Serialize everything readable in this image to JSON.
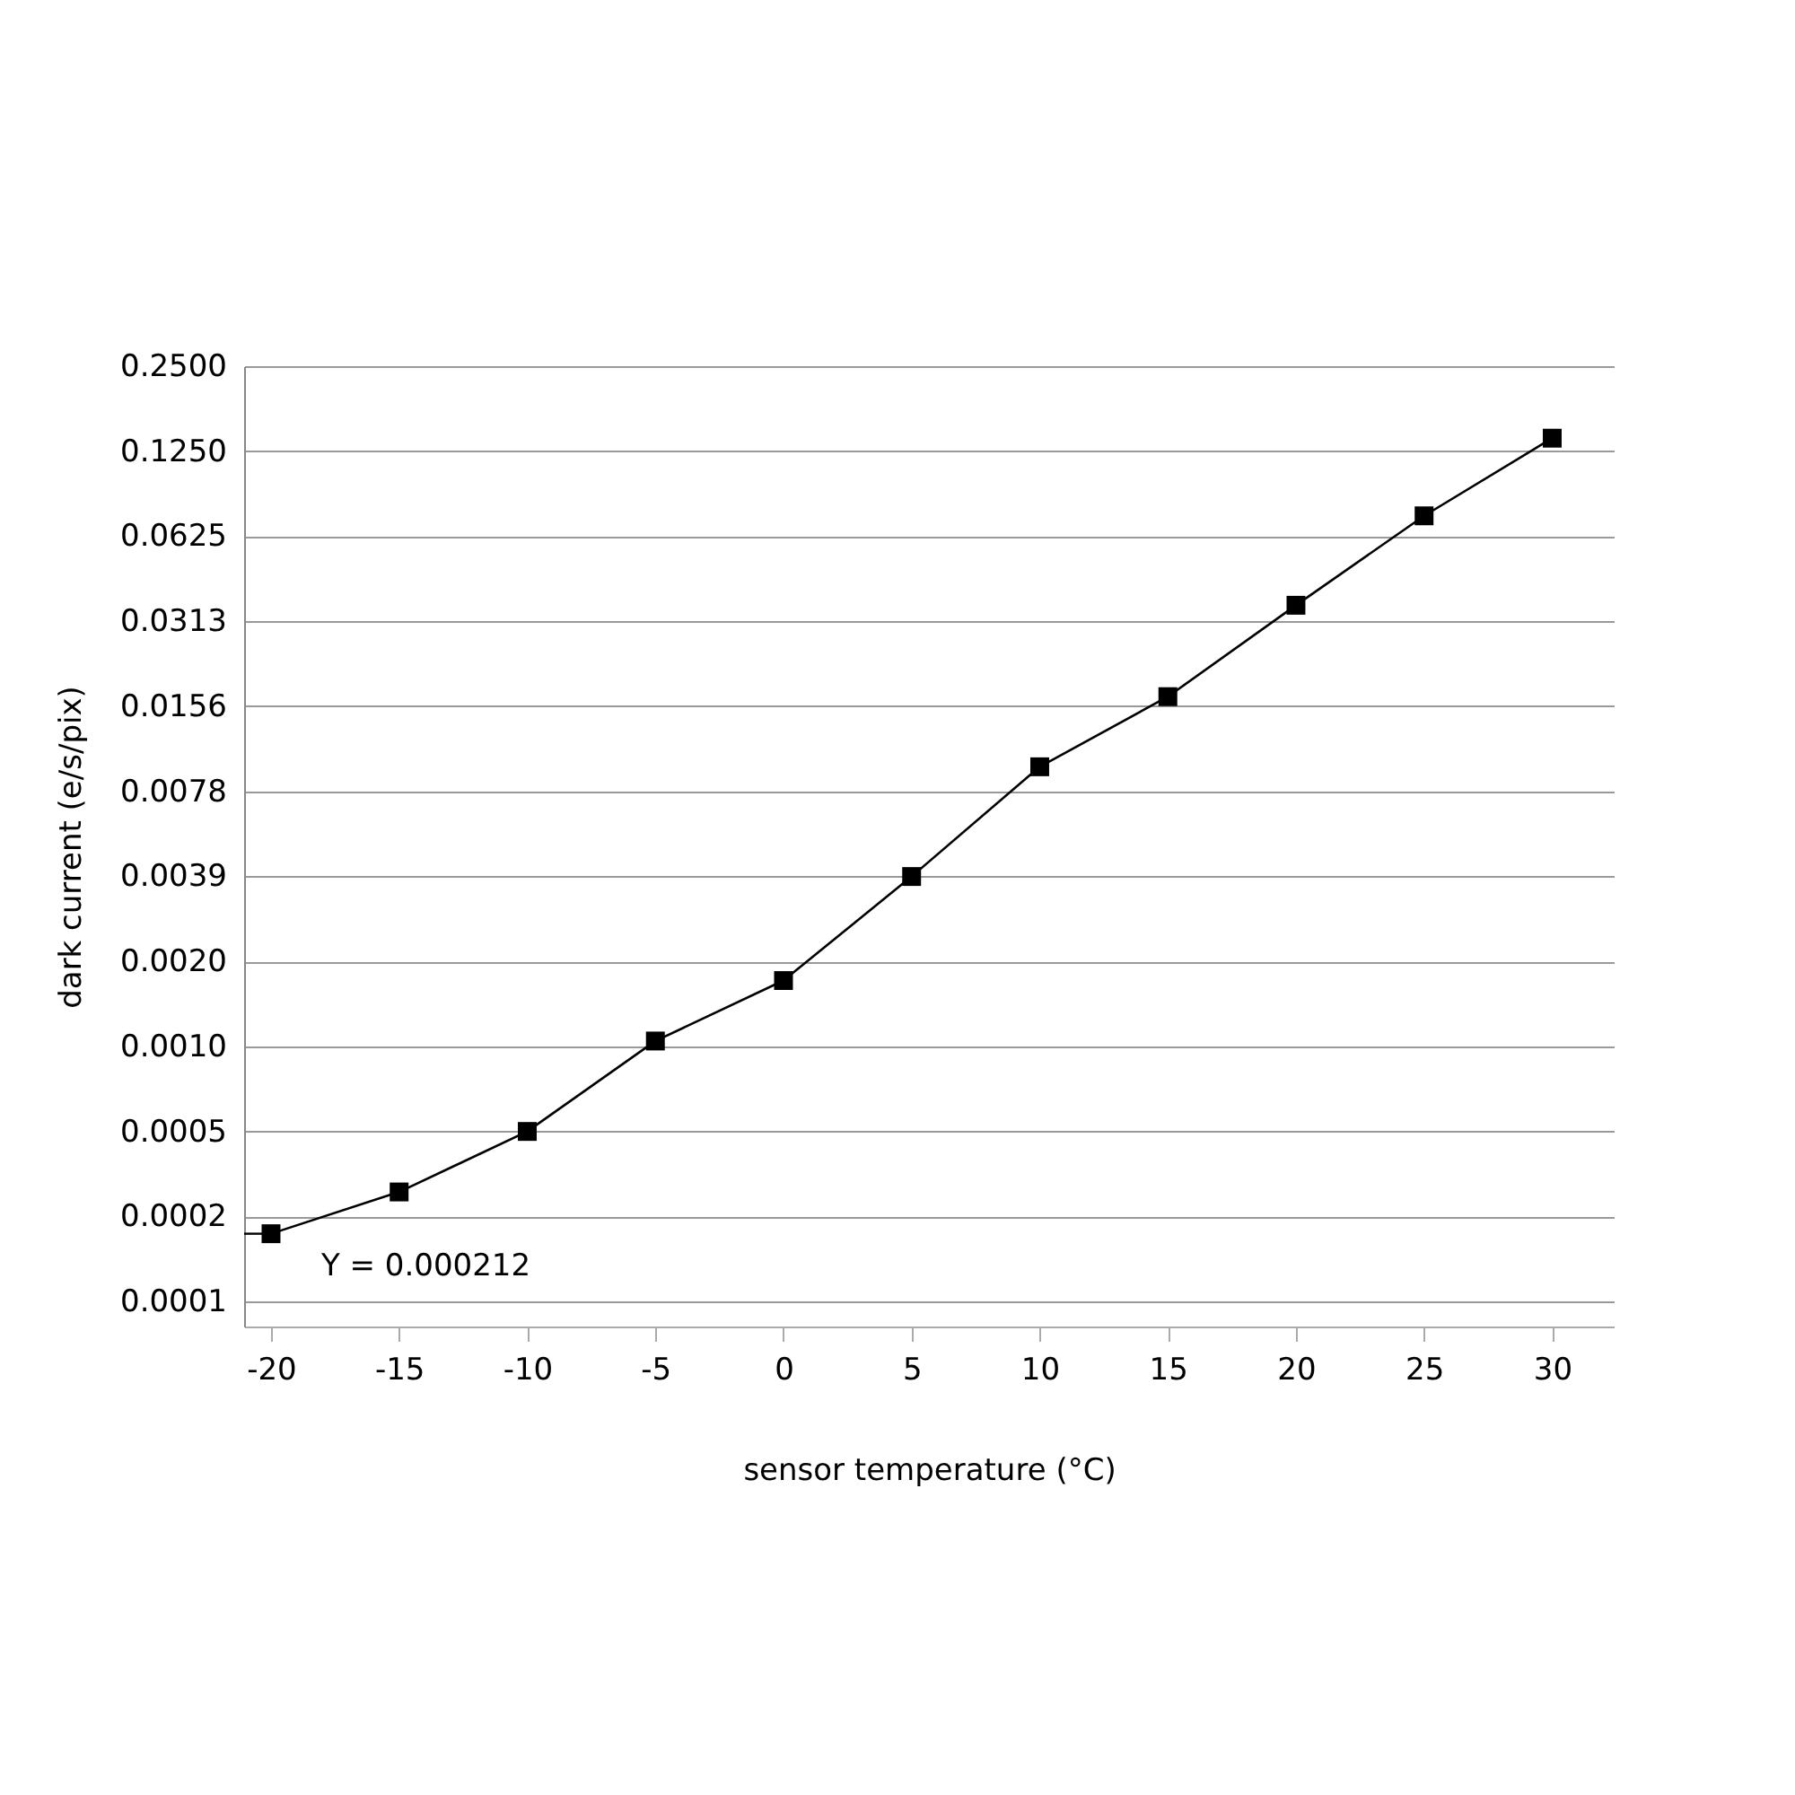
{
  "chart_data": {
    "type": "line",
    "xlabel": "sensor temperature (°C)",
    "ylabel": "dark current (e/s/pix)",
    "x": [
      -20,
      -15,
      -10,
      -5,
      0,
      5,
      10,
      15,
      20,
      25,
      30
    ],
    "series": [
      {
        "color": "#000000",
        "values": [
          0.000212,
          0.000298,
          0.000488,
          0.00102,
          0.00167,
          0.0039,
          0.00954,
          0.0169,
          0.0356,
          0.0738,
          0.139
        ]
      }
    ],
    "marker": "square",
    "line_style": "solid",
    "log": "y",
    "grid": "y",
    "xlim": [
      -21.05,
      32.4
    ],
    "xticks": [
      -20,
      -15,
      -10,
      -5,
      0,
      5,
      10,
      15,
      20,
      25,
      30
    ],
    "ylim": [
      9.95e-05,
      0.25
    ],
    "yticks": [
      {
        "value": 0.25,
        "label": "0.2500"
      },
      {
        "value": 0.125,
        "label": "0.1250"
      },
      {
        "value": 0.0625,
        "label": "0.0625"
      },
      {
        "value": 0.03125,
        "label": "0.0313"
      },
      {
        "value": 0.015625,
        "label": "0.0156"
      },
      {
        "value": 0.0078125,
        "label": "0.0078"
      },
      {
        "value": 0.00390625,
        "label": "0.0039"
      },
      {
        "value": 0.001953125,
        "label": "0.0020"
      },
      {
        "value": 0.0009765625,
        "label": "0.0010"
      },
      {
        "value": 0.00048828125,
        "label": "0.0005"
      },
      {
        "value": 0.000244140625,
        "label": "0.0002"
      },
      {
        "value": 0.0001220703125,
        "label": "0.0001"
      }
    ],
    "annotations": [
      {
        "text": "Y = 0.000212",
        "x": -20,
        "y": 0.000212
      }
    ]
  }
}
